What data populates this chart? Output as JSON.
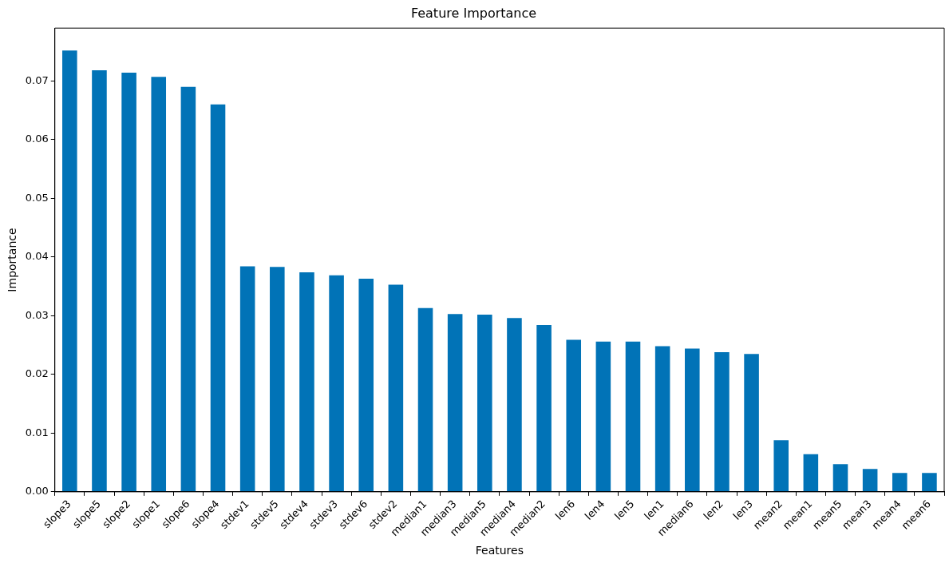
{
  "chart_data": {
    "type": "bar",
    "title": "Feature Importance",
    "xlabel": "Features",
    "ylabel": "Importance",
    "categories": [
      "slope3",
      "slope5",
      "slope2",
      "slope1",
      "slope6",
      "slope4",
      "stdev1",
      "stdev5",
      "stdev4",
      "stdev3",
      "stdev6",
      "stdev2",
      "median1",
      "median3",
      "median5",
      "median4",
      "median2",
      "len6",
      "len4",
      "len5",
      "len1",
      "median6",
      "len2",
      "len3",
      "mean2",
      "mean1",
      "mean5",
      "mean3",
      "mean4",
      "mean6"
    ],
    "values": [
      0.0752,
      0.0718,
      0.0714,
      0.0707,
      0.069,
      0.066,
      0.0384,
      0.0383,
      0.0374,
      0.0369,
      0.0363,
      0.0353,
      0.0313,
      0.0303,
      0.0302,
      0.0296,
      0.0284,
      0.0259,
      0.0256,
      0.0256,
      0.0248,
      0.0244,
      0.0238,
      0.0235,
      0.0088,
      0.0064,
      0.0047,
      0.0039,
      0.0032,
      0.0032
    ],
    "color": "#0173b7",
    "ylim": [
      0,
      0.079
    ],
    "yticks": [
      {
        "value": 0,
        "label": "0.00"
      },
      {
        "value": 0.01,
        "label": "0.01"
      },
      {
        "value": 0.02,
        "label": "0.02"
      },
      {
        "value": 0.03,
        "label": "0.03"
      },
      {
        "value": 0.04,
        "label": "0.04"
      },
      {
        "value": 0.05,
        "label": "0.05"
      },
      {
        "value": 0.06,
        "label": "0.06"
      },
      {
        "value": 0.07,
        "label": "0.07"
      }
    ],
    "grid": false,
    "legend": false
  }
}
